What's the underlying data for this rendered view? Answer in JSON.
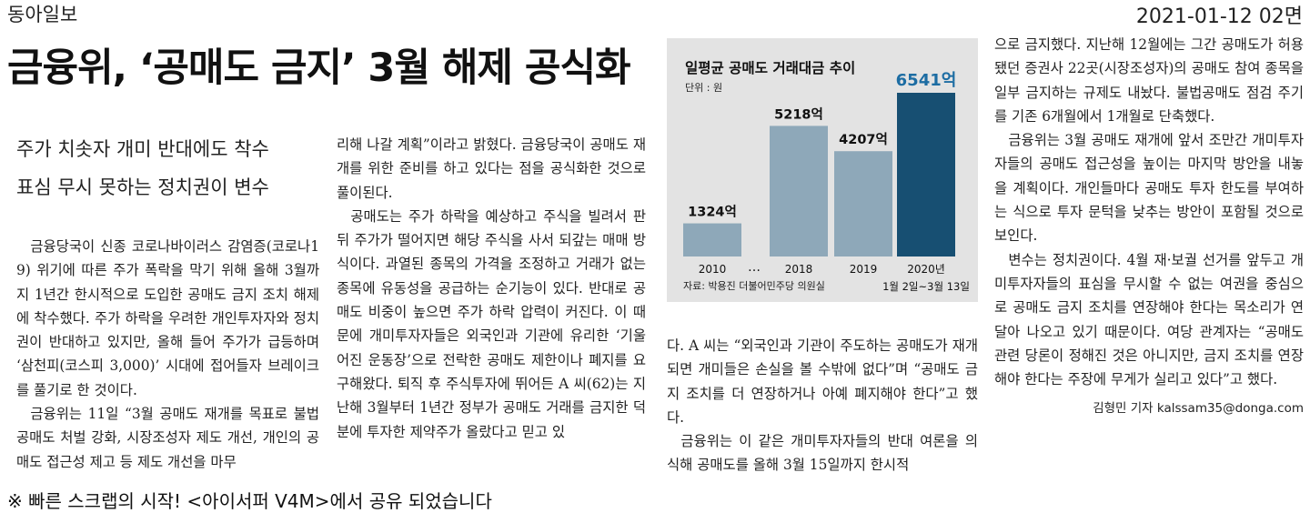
{
  "publisher": "동아일보",
  "date": "2021-01-12 02면",
  "headline": "금융위, ‘공매도 금지’ 3월 해제 공식화",
  "subheads": [
    "주가 치솟자 개미 반대에도 착수",
    "표심 무시 못하는 정치권이 변수"
  ],
  "columns": {
    "col1": [
      "금융당국이 신종 코로나바이러스 감염증(코로나19) 위기에 따른 주가 폭락을 막기 위해 올해 3월까지 1년간 한시적으로 도입한 공매도 금지 조치 해제에 착수했다. 주가 하락을 우려한 개인투자자와 정치권이 반대하고 있지만, 올해 들어 주가가 급등하며 ‘삼천피(코스피 3,000)’ 시대에 접어들자 브레이크를 풀기로 한 것이다.",
      "금융위는 11일 “3월 공매도 재개를 목표로 불법 공매도 처벌 강화, 시장조성자 제도 개선, 개인의 공매도 접근성 제고 등 제도 개선을 마무"
    ],
    "col2": [
      "리해 나갈 계획”이라고 밝혔다. 금융당국이 공매도 재개를 위한 준비를 하고 있다는 점을 공식화한 것으로 풀이된다.",
      "공매도는 주가 하락을 예상하고 주식을 빌려서 판 뒤 주가가 떨어지면 해당 주식을 사서 되갚는 매매 방식이다. 과열된 종목의 가격을 조정하고 거래가 없는 종목에 유동성을 공급하는 순기능이 있다. 반대로 공매도 비중이 높으면 주가 하락 압력이 커진다. 이 때문에 개미투자자들은 외국인과 기관에 유리한 ‘기울어진 운동장’으로 전락한 공매도 제한이나 폐지를 요구해왔다. 퇴직 후 주식투자에 뛰어든 A 씨(62)는 지난해 3월부터 1년간 정부가 공매도 거래를 금지한 덕분에 투자한 제약주가 올랐다고 믿고 있"
    ],
    "col3": [
      "다. A 씨는 “외국인과 기관이 주도하는 공매도가 재개되면 개미들은 손실을 볼 수밖에 없다”며 “공매도 금지 조치를 더 연장하거나 아예 폐지해야 한다”고 했다.",
      "금융위는 이 같은 개미투자자들의 반대 여론을 의식해 공매도를 올해 3월 15일까지 한시적"
    ],
    "col4": [
      "으로 금지했다. 지난해 12월에는 그간 공매도가 허용됐던 증권사 22곳(시장조성자)의 공매도 참여 종목을 일부 금지하는 규제도 내놨다. 불법공매도 점검 주기를 기존 6개월에서 1개월로 단축했다.",
      "금융위는 3월 공매도 재개에 앞서 조만간 개미투자자들의 공매도 접근성을 높이는 마지막 방안을 내놓을 계획이다. 개인들마다 공매도 투자 한도를 부여하는 식으로 투자 문턱을 낮추는 방안이 포함될 것으로 보인다.",
      "변수는 정치권이다. 4월 재·보궐 선거를 앞두고 개미투자자들의 표심을 무시할 수 없는 여권을 중심으로 공매도 금지 조치를 연장해야 한다는 목소리가 연달아 나오고 있기 때문이다. 여당 관계자는 “공매도 관련 당론이 정해진 것은 아니지만, 금지 조치를 연장해야 한다는 주장에 무게가 실리고 있다”고 했다."
    ]
  },
  "byline": "김형민 기자 kalssam35@donga.com",
  "footer": "※ 빠른 스크랩의 시작! <아이서퍼 V4M>에서 공유 되었습니다",
  "chart_data": {
    "type": "bar",
    "title": "일평균 공매도 거래대금 추이",
    "unit": "단위 : 원",
    "categories": [
      "2010",
      "2018",
      "2019",
      "2020년"
    ],
    "category_sublabels": [
      "",
      "",
      "",
      "1월 2일~3월 13일"
    ],
    "gap_marker": "…",
    "values": [
      1324,
      5218,
      4207,
      6541
    ],
    "value_labels": [
      "1324억",
      "5218억",
      "4207억",
      "6541억"
    ],
    "source": "자료: 박용진 더불어민주당 의원실",
    "colors": {
      "bar": "#8ea8b9",
      "highlight": "#174f72",
      "highlight_label": "#1d6da3",
      "background": "#e3e3e3"
    },
    "ylim": [
      0,
      6541
    ]
  }
}
